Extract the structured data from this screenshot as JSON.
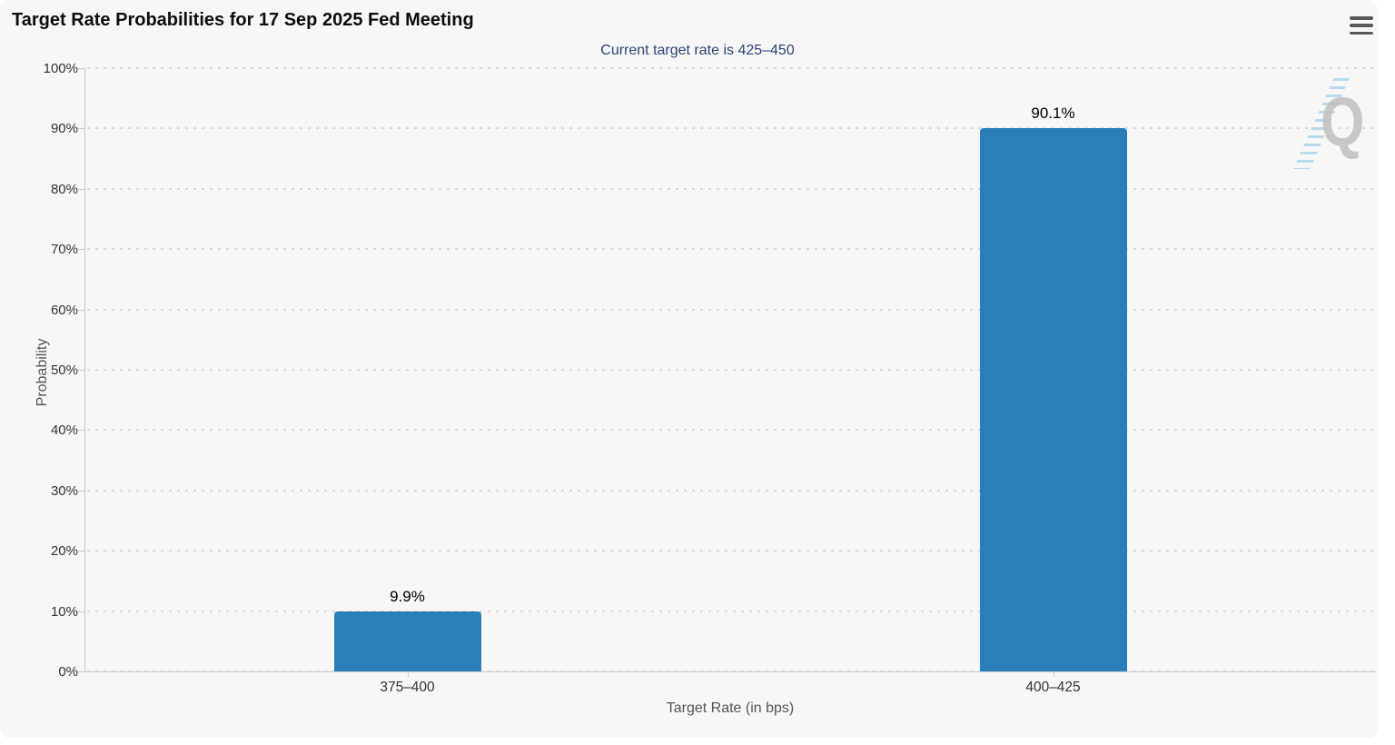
{
  "header": {
    "title": "Target Rate Probabilities for 17 Sep 2025 Fed Meeting",
    "subtitle": "Current target rate is 425–450"
  },
  "menu": {
    "icon": "hamburger-icon"
  },
  "watermark": {
    "letter": "Q"
  },
  "colors": {
    "bar": "#2b7fb8",
    "background": "#f7f7f7",
    "subtitle_text": "#2a4473",
    "grid": "#d0d0d0",
    "axis": "#c8c8c8"
  },
  "chart_data": {
    "type": "bar",
    "title": "Target Rate Probabilities for 17 Sep 2025 Fed Meeting",
    "subtitle": "Current target rate is 425–450",
    "categories": [
      "375–400",
      "400–425"
    ],
    "values": [
      9.9,
      90.1
    ],
    "value_labels": [
      "9.9%",
      "90.1%"
    ],
    "xlabel": "Target Rate (in bps)",
    "ylabel": "Probability",
    "ylim": [
      0,
      100
    ],
    "ytick_step": 10,
    "ytick_labels": [
      "0%",
      "10%",
      "20%",
      "30%",
      "40%",
      "50%",
      "60%",
      "70%",
      "80%",
      "90%",
      "100%"
    ],
    "grid": "horizontal-dotted",
    "legend": null,
    "bar_color": "#2b7fb8"
  }
}
